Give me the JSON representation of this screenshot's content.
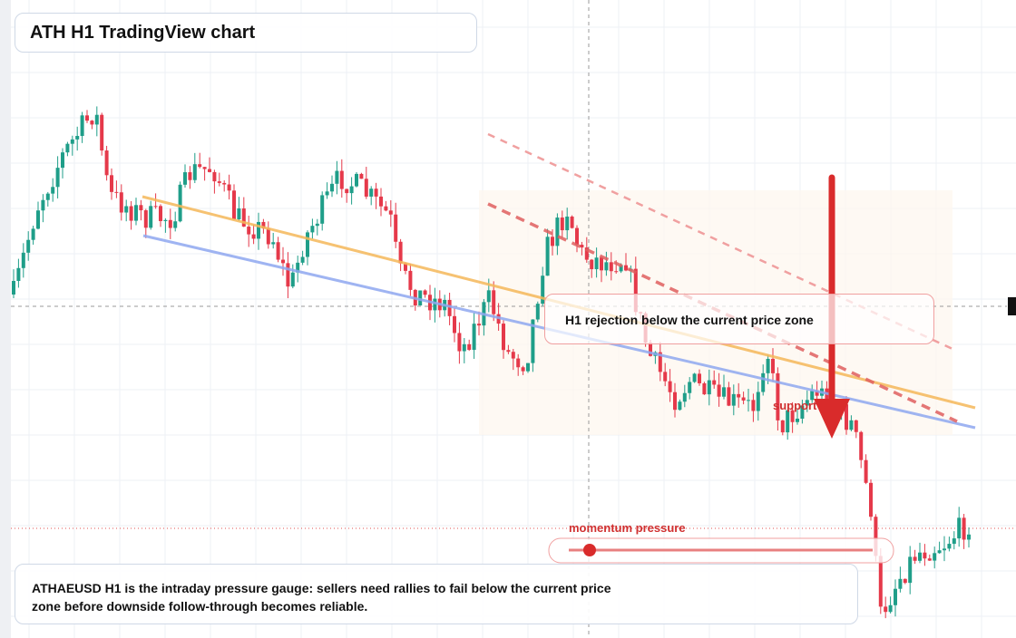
{
  "header": {
    "title": "ATH H1 TradingView chart"
  },
  "annotations": {
    "callout": "H1 rejection below the current price zone",
    "support": "support",
    "gauge_label": "momentum pressure"
  },
  "footer": {
    "note": "ATHAEUSD H1 is the intraday pressure gauge: sellers need rallies to fail below the current price zone before downside follow-through becomes reliable."
  }
}
